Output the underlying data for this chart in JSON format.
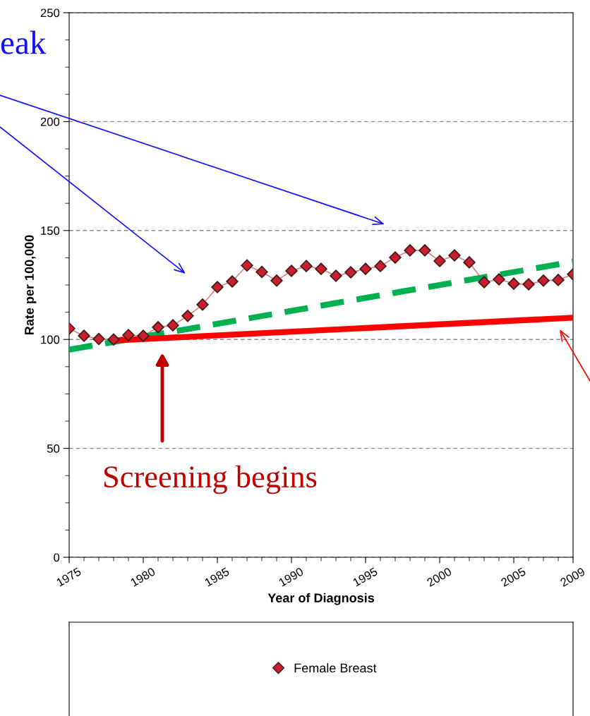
{
  "chart_data": {
    "type": "line",
    "xlabel": "Year of Diagnosis",
    "ylabel": "Rate per 100,000",
    "xlim": [
      1975,
      2009
    ],
    "ylim": [
      0,
      250
    ],
    "xticks": [
      1975,
      1980,
      1985,
      1990,
      1995,
      2000,
      2005,
      2009
    ],
    "yticks": [
      0,
      50,
      100,
      150,
      200,
      250
    ],
    "grid": "y",
    "legend": "bottom",
    "series": [
      {
        "name": "Female Breast",
        "color": "#cc1f2e",
        "marker": "diamond",
        "line_style": "solid",
        "x": [
          1975,
          1976,
          1977,
          1978,
          1979,
          1980,
          1981,
          1982,
          1983,
          1984,
          1985,
          1986,
          1987,
          1988,
          1989,
          1990,
          1991,
          1992,
          1993,
          1994,
          1995,
          1996,
          1997,
          1998,
          1999,
          2000,
          2001,
          2002,
          2003,
          2004,
          2005,
          2006,
          2007,
          2008,
          2009
        ],
        "values": [
          105,
          101.7,
          100.2,
          100,
          102,
          101.7,
          105.6,
          106.5,
          110.8,
          116,
          124,
          126.6,
          134,
          131,
          127,
          131.5,
          133.7,
          132.4,
          129.2,
          130.8,
          132.4,
          133.7,
          137.6,
          140.9,
          140.9,
          136,
          138.6,
          135.4,
          126.3,
          127.6,
          125.6,
          125.3,
          127,
          127.3,
          129.9
        ]
      },
      {
        "color": "#00b050",
        "marker": "none",
        "line_style": "dashed",
        "x": [
          1975,
          2009
        ],
        "values": [
          95.3,
          135.7
        ]
      },
      {
        "color": "#ff0000",
        "marker": "none",
        "line_style": "solid",
        "x": [
          1978,
          2009
        ],
        "values": [
          99.5,
          110
        ]
      }
    ],
    "annotations": [
      "eak",
      "Screening begins"
    ]
  }
}
